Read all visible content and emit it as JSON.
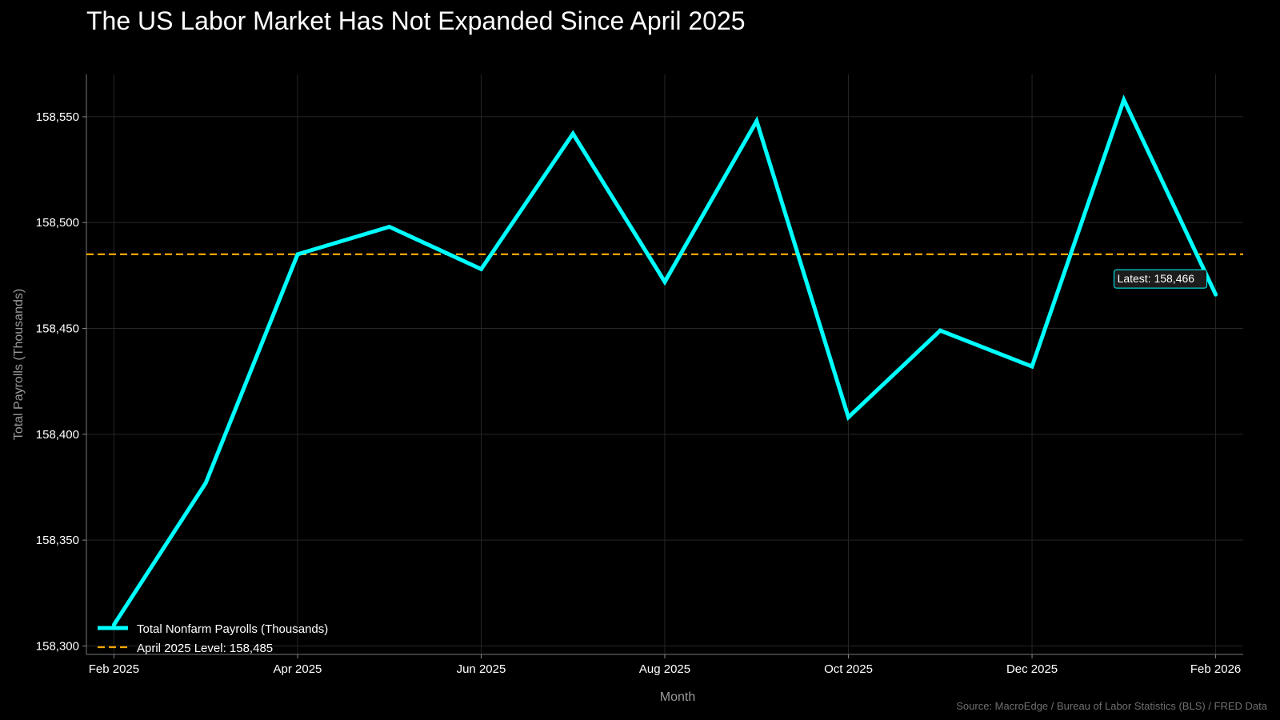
{
  "chart_data": {
    "type": "line",
    "title": "The US Labor Market Has Not Expanded Since April 2025",
    "xlabel": "Month",
    "ylabel": "Total Payrolls (Thousands)",
    "x": [
      "2025-02",
      "2025-03",
      "2025-04",
      "2025-05",
      "2025-06",
      "2025-07",
      "2025-08",
      "2025-09",
      "2025-10",
      "2025-11",
      "2025-12",
      "2026-01",
      "2026-02"
    ],
    "x_tick_labels": [
      "Feb 2025",
      "Apr 2025",
      "Jun 2025",
      "Aug 2025",
      "Oct 2025",
      "Dec 2025",
      "Feb 2026"
    ],
    "x_tick_indices": [
      0,
      2,
      4,
      6,
      8,
      10,
      12
    ],
    "series": [
      {
        "name": "Total Nonfarm Payrolls (Thousands)",
        "color": "#00ffff",
        "values": [
          158310,
          158377,
          158485,
          158498,
          158478,
          158542,
          158472,
          158548,
          158408,
          158449,
          158432,
          158558,
          158466
        ]
      }
    ],
    "reference_line": {
      "name": "April 2025 Level: 158,485",
      "value": 158485,
      "color": "#ffa500",
      "style": "dashed"
    },
    "annotation": {
      "text": "Latest: 158,466",
      "x_index": 12,
      "value": 158466
    },
    "y_ticks": [
      158300,
      158350,
      158400,
      158450,
      158500,
      158550
    ],
    "y_tick_labels": [
      "158,300",
      "158,350",
      "158,400",
      "158,450",
      "158,500",
      "158,550"
    ],
    "ylim": [
      158296,
      158570
    ],
    "xlim": [
      -0.3,
      12.3
    ],
    "grid": true,
    "legend_position": "bottom-left",
    "source": "Source: MacroEdge / Bureau of Labor Statistics (BLS) / FRED Data"
  }
}
